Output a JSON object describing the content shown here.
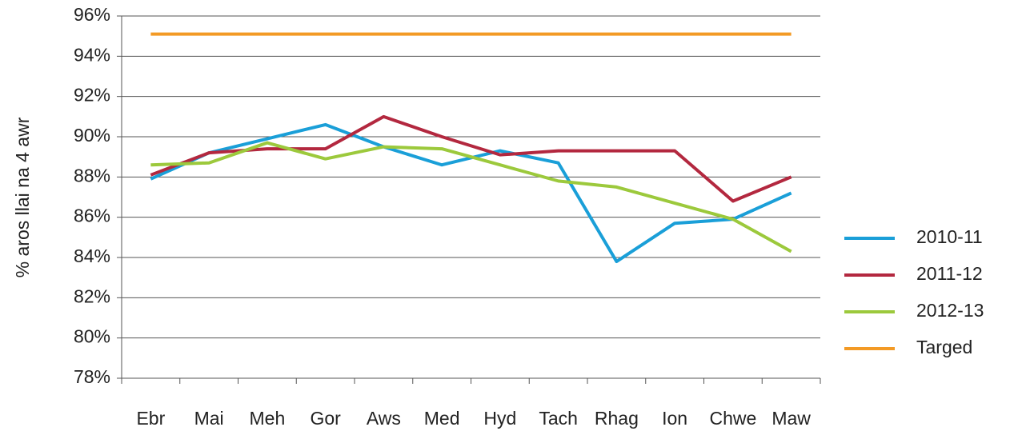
{
  "chart_data": {
    "type": "line",
    "ylabel": "% aros llai na 4 awr",
    "categories": [
      "Ebr",
      "Mai",
      "Meh",
      "Gor",
      "Aws",
      "Med",
      "Hyd",
      "Tach",
      "Rhag",
      "Ion",
      "Chwe",
      "Maw"
    ],
    "series": [
      {
        "name": "2010-11",
        "color": "#1a9fd8",
        "values": [
          87.9,
          89.2,
          89.9,
          90.6,
          89.5,
          88.6,
          89.3,
          88.7,
          83.8,
          85.7,
          85.9,
          87.2
        ]
      },
      {
        "name": "2011-12",
        "color": "#b3283f",
        "values": [
          88.1,
          89.2,
          89.4,
          89.4,
          91.0,
          90.0,
          89.1,
          89.3,
          89.3,
          89.3,
          86.8,
          88.0
        ]
      },
      {
        "name": "2012-13",
        "color": "#9cc93c",
        "values": [
          88.6,
          88.7,
          89.7,
          88.9,
          89.5,
          89.4,
          88.6,
          87.8,
          87.5,
          86.7,
          85.9,
          84.3
        ]
      },
      {
        "name": "Targed",
        "color": "#f39a25",
        "values": [
          95.1,
          95.1,
          95.1,
          95.1,
          95.1,
          95.1,
          95.1,
          95.1,
          95.1,
          95.1,
          95.1,
          95.1
        ]
      }
    ],
    "ylim": [
      78,
      96
    ],
    "yticks": [
      {
        "value": 78,
        "label": "78%"
      },
      {
        "value": 80,
        "label": "80%"
      },
      {
        "value": 82,
        "label": "82%"
      },
      {
        "value": 84,
        "label": "84%"
      },
      {
        "value": 86,
        "label": "86%"
      },
      {
        "value": 88,
        "label": "88%"
      },
      {
        "value": 90,
        "label": "90%"
      },
      {
        "value": 92,
        "label": "92%"
      },
      {
        "value": 94,
        "label": "94%"
      },
      {
        "value": 96,
        "label": "96%"
      }
    ],
    "grid": true,
    "legend": "right"
  }
}
